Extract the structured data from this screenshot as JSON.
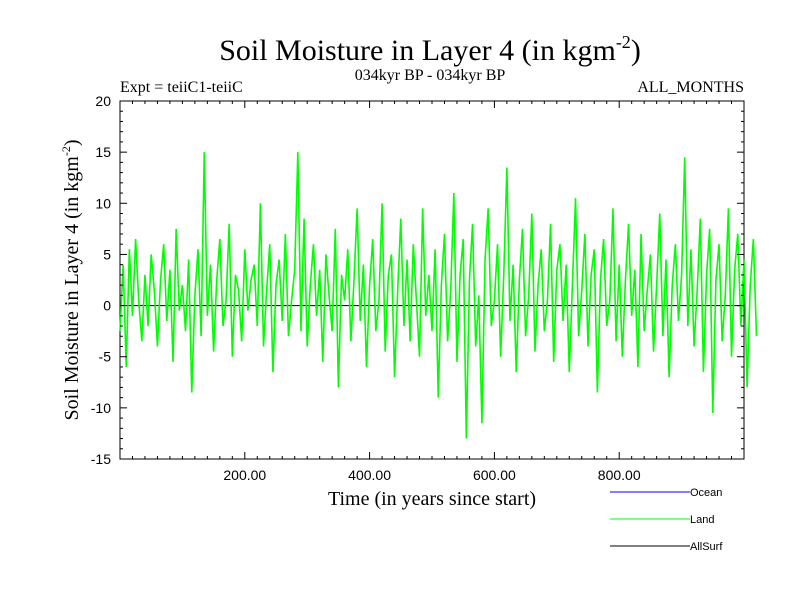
{
  "header": {
    "title_main": "Soil Moisture in Layer 4 (in kgm",
    "title_sup": "-2",
    "title_close": ")",
    "expt": "Expt = teiiC1-teiiC",
    "period": "034kyr BP - 034kyr BP",
    "months": "ALL_MONTHS"
  },
  "axes": {
    "xlabel": "Time (in years since start)",
    "ylabel_main": "Soil Moisture in Layer 4 (in kgm",
    "ylabel_sup": "-2",
    "ylabel_close": ")",
    "xlim": [
      0,
      1000
    ],
    "ylim": [
      -15,
      20
    ],
    "xticks": [
      {
        "value": 200,
        "label": "200.00"
      },
      {
        "value": 400,
        "label": "400.00"
      },
      {
        "value": 600,
        "label": "600.00"
      },
      {
        "value": 800,
        "label": "800.00"
      }
    ],
    "yticks": [
      {
        "value": 20,
        "label": "20"
      },
      {
        "value": 15,
        "label": "15"
      },
      {
        "value": 10,
        "label": "10"
      },
      {
        "value": 5,
        "label": "5"
      },
      {
        "value": 0,
        "label": "0"
      },
      {
        "value": -5,
        "label": "-5"
      },
      {
        "value": -10,
        "label": "-10"
      },
      {
        "value": -15,
        "label": "-15"
      }
    ]
  },
  "legend": {
    "placement": "bottom-right",
    "items": [
      {
        "label": "Ocean",
        "color": "#0000ff"
      },
      {
        "label": "Land",
        "color": "#00ff00"
      },
      {
        "label": "AllSurf",
        "color": "#000000"
      }
    ]
  },
  "chart_data": {
    "type": "line",
    "x_start": 0,
    "x_step": 5,
    "xlim": [
      0,
      1000
    ],
    "ylim": [
      -15,
      20
    ],
    "series": [
      {
        "name": "Land",
        "color": "#00ff00",
        "values": [
          -2.5,
          4.0,
          -6.0,
          5.5,
          -1.0,
          6.5,
          0.5,
          -3.5,
          3.0,
          -2.0,
          5.0,
          1.5,
          -4.0,
          2.5,
          6.0,
          -1.5,
          3.5,
          -5.5,
          7.5,
          -0.5,
          2.0,
          -2.5,
          4.5,
          -8.5,
          1.0,
          5.5,
          -3.0,
          15.0,
          -1.0,
          4.0,
          -4.5,
          2.5,
          6.5,
          -2.0,
          0.5,
          8.0,
          -5.0,
          3.0,
          1.5,
          -3.5,
          5.5,
          -0.5,
          2.5,
          4.0,
          -2.0,
          10.0,
          -4.0,
          1.5,
          6.0,
          -6.5,
          2.0,
          4.5,
          -1.5,
          7.0,
          -3.0,
          0.5,
          3.5,
          15.0,
          -2.5,
          8.5,
          -4.0,
          2.0,
          6.0,
          -1.0,
          3.5,
          -5.5,
          5.0,
          1.0,
          -2.5,
          7.5,
          -8.0,
          3.0,
          0.5,
          5.5,
          -3.5,
          2.5,
          9.5,
          -1.5,
          4.0,
          -6.0,
          2.0,
          6.5,
          -2.5,
          0.5,
          10.0,
          -4.5,
          3.0,
          5.0,
          -7.0,
          1.5,
          8.5,
          -2.0,
          4.5,
          -3.5,
          6.0,
          0.5,
          -5.0,
          9.5,
          -1.0,
          3.0,
          -2.5,
          5.5,
          -9.0,
          2.0,
          7.0,
          -3.5,
          1.5,
          11.0,
          -5.5,
          3.0,
          6.5,
          -13.0,
          2.5,
          8.0,
          -4.0,
          1.0,
          -11.5,
          4.5,
          9.5,
          -2.0,
          0.5,
          6.0,
          -5.0,
          3.0,
          13.5,
          -1.5,
          4.0,
          -6.5,
          2.5,
          7.5,
          -3.0,
          1.0,
          9.0,
          -4.5,
          2.0,
          5.5,
          -2.5,
          0.5,
          8.0,
          -5.5,
          3.5,
          6.0,
          -1.5,
          4.0,
          -6.5,
          2.0,
          10.5,
          -3.0,
          1.5,
          7.0,
          -4.0,
          3.0,
          5.5,
          -8.5,
          2.5,
          6.5,
          -2.0,
          0.5,
          9.5,
          -3.5,
          4.0,
          -5.0,
          2.5,
          8.0,
          -1.0,
          3.5,
          -6.0,
          7.0,
          -2.5,
          1.5,
          5.0,
          -4.5,
          2.0,
          9.0,
          -3.0,
          4.5,
          -7.0,
          2.0,
          6.0,
          -1.5,
          3.0,
          14.5,
          -2.0,
          5.5,
          -4.0,
          1.5,
          8.5,
          -6.5,
          3.0,
          7.5,
          -10.5,
          2.5,
          6.0,
          -3.5,
          1.0,
          9.5,
          -5.0,
          3.5,
          7.0,
          -2.0,
          4.5,
          -8.0,
          2.0,
          6.5,
          -3.0
        ]
      }
    ]
  }
}
